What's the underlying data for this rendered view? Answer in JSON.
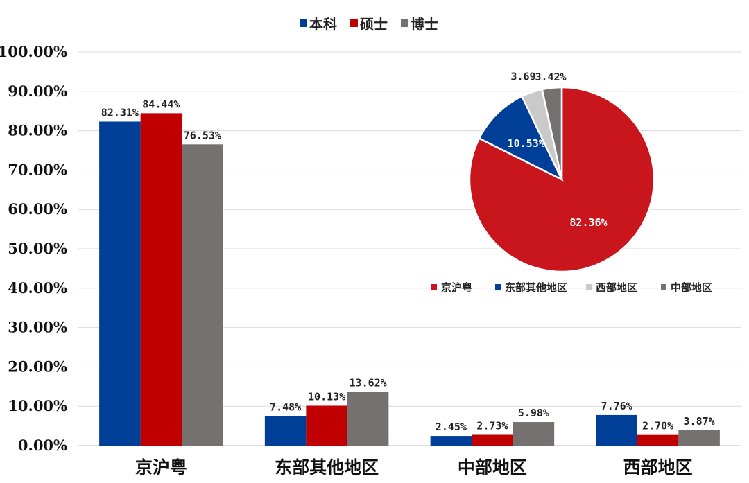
{
  "chart_data": [
    {
      "type": "bar",
      "categories": [
        "京沪粤",
        "东部其他地区",
        "中部地区",
        "西部地区"
      ],
      "series": [
        {
          "name": "本科",
          "color": "#003f98",
          "values": [
            82.31,
            7.48,
            2.45,
            7.76
          ],
          "labels": [
            "82.31%",
            "7.48%",
            "2.45%",
            "7.76%"
          ]
        },
        {
          "name": "硕士",
          "color": "#c00000",
          "values": [
            84.44,
            10.13,
            2.73,
            2.7
          ],
          "labels": [
            "84.44%",
            "10.13%",
            "2.73%",
            "2.70%"
          ]
        },
        {
          "name": "博士",
          "color": "#767171",
          "values": [
            76.53,
            13.62,
            5.98,
            3.87
          ],
          "labels": [
            "76.53%",
            "13.62%",
            "5.98%",
            "3.87%"
          ]
        }
      ],
      "yticks": [
        "0.00%",
        "10.00%",
        "20.00%",
        "30.00%",
        "40.00%",
        "50.00%",
        "60.00%",
        "70.00%",
        "80.00%",
        "90.00%",
        "100.00%"
      ],
      "ylim": [
        0,
        100
      ],
      "grid": true,
      "legend_position": "top"
    },
    {
      "type": "pie",
      "slices": [
        {
          "name": "京沪粤",
          "value": 82.36,
          "label": "82.36%",
          "color": "#c9161d"
        },
        {
          "name": "东部其他地区",
          "value": 10.53,
          "label": "10.53%",
          "color": "#003f98"
        },
        {
          "name": "西部地区",
          "value": 3.69,
          "label": "3.69%",
          "color": "#c9c9c9"
        },
        {
          "name": "中部地区",
          "value": 3.42,
          "label": "3.42%",
          "color": "#767171"
        }
      ],
      "legend_position": "bottom"
    }
  ]
}
